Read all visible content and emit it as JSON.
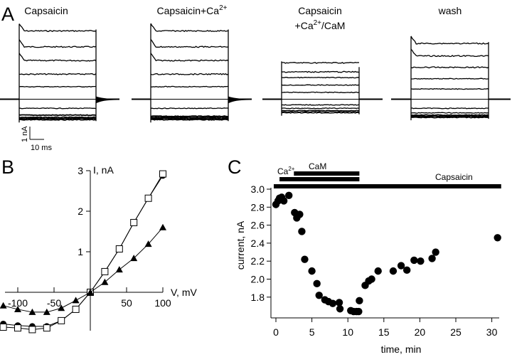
{
  "chart_data": [
    {
      "panel": "A",
      "type": "line",
      "description": "Whole-cell current traces in response to voltage steps",
      "conditions": [
        {
          "title_lines": [
            "Capsaicin"
          ],
          "title_sup": null,
          "step_currents_nA": [
            3.0,
            2.3,
            1.7,
            1.1,
            0.55,
            0,
            -0.4,
            -0.7,
            -0.8,
            -0.85,
            -0.9
          ],
          "tail": true
        },
        {
          "title_lines": [
            "Capsaicin+Ca"
          ],
          "title_sup": "2+",
          "step_currents_nA": [
            3.0,
            2.3,
            1.7,
            1.1,
            0.55,
            0,
            -0.4,
            -0.75,
            -0.8,
            -0.85,
            -0.9
          ],
          "tail": true
        },
        {
          "title_lines": [
            "Capsaicin",
            "+Ca"
          ],
          "title_sup": "2+",
          "title_suffix": "/CaM",
          "step_currents_nA": [
            1.6,
            1.2,
            0.95,
            0.62,
            0.3,
            0,
            -0.25,
            -0.4,
            -0.5,
            -0.55,
            -0.6
          ],
          "tail": false
        },
        {
          "title_lines": [
            "wash"
          ],
          "title_sup": null,
          "step_currents_nA": [
            2.45,
            1.9,
            1.4,
            0.9,
            0.45,
            0,
            -0.4,
            -0.6,
            -0.7,
            -0.75,
            -0.8
          ],
          "tail": false
        }
      ],
      "scale_bar": {
        "current_label": "1 nA",
        "time_label": "10 ms"
      }
    },
    {
      "panel": "B",
      "type": "line",
      "xlabel": "V, mV",
      "ylabel": "I, nA",
      "xlim": [
        -120,
        100
      ],
      "ylim": [
        -1,
        3
      ],
      "xticks": [
        -100,
        -50,
        50,
        100
      ],
      "xtick_labels": [
        "-100",
        "-50",
        "50",
        "100"
      ],
      "yticks": [
        1,
        2,
        3
      ],
      "ytick_labels": [
        "1",
        "2",
        "3"
      ],
      "series": [
        {
          "name": "circles",
          "marker": "filled-circle",
          "x": [
            -120,
            -100,
            -80,
            -60,
            -40,
            -20,
            0,
            20,
            40,
            60,
            80,
            100
          ],
          "y": [
            -0.78,
            -0.82,
            -0.84,
            -0.84,
            -0.7,
            -0.42,
            0,
            0.51,
            1.07,
            1.72,
            2.32,
            2.88
          ]
        },
        {
          "name": "squares",
          "marker": "open-square",
          "x": [
            -120,
            -100,
            -80,
            -60,
            -40,
            -20,
            0,
            20,
            40,
            60,
            80,
            100
          ],
          "y": [
            -0.86,
            -0.88,
            -0.92,
            -0.88,
            -0.7,
            -0.42,
            0,
            0.51,
            1.07,
            1.72,
            2.32,
            2.92
          ]
        },
        {
          "name": "triangles",
          "marker": "filled-triangle",
          "x": [
            -120,
            -100,
            -80,
            -60,
            -40,
            -20,
            0,
            20,
            40,
            60,
            80,
            100
          ],
          "y": [
            -0.33,
            -0.42,
            -0.49,
            -0.49,
            -0.39,
            -0.2,
            0,
            0.25,
            0.56,
            0.84,
            1.19,
            1.6
          ]
        }
      ]
    },
    {
      "panel": "C",
      "type": "scatter",
      "xlabel": "time, min",
      "ylabel": "current, nA",
      "xlim": [
        -1,
        31.5
      ],
      "ylim": [
        1.6,
        3.05
      ],
      "xticks": [
        0,
        5,
        10,
        15,
        20,
        25,
        30
      ],
      "xtick_labels": [
        "0",
        "5",
        "10",
        "15",
        "20",
        "25",
        "30"
      ],
      "yticks": [
        1.8,
        2.0,
        2.2,
        2.4,
        2.6,
        2.8,
        3.0
      ],
      "ytick_labels": [
        "1.8",
        "2.0",
        "2.2",
        "2.4",
        "2.6",
        "2.8",
        "3.0"
      ],
      "x": [
        0,
        0.3,
        0.5,
        0.8,
        1.1,
        1.8,
        2.6,
        2.9,
        3.3,
        3.6,
        4.0,
        5.0,
        5.7,
        6.0,
        6.8,
        7.3,
        7.9,
        8.8,
        8.9,
        10.4,
        10.8,
        11.2,
        11.5,
        11.6,
        12.4,
        12.9,
        13.3,
        14.2,
        16.3,
        17.4,
        18.2,
        19.2,
        20.1,
        21.7,
        22.2,
        30.8
      ],
      "y": [
        2.83,
        2.87,
        2.9,
        2.91,
        2.87,
        2.93,
        2.74,
        2.68,
        2.72,
        2.53,
        2.22,
        2.09,
        1.95,
        1.82,
        1.77,
        1.75,
        1.73,
        1.74,
        1.67,
        1.65,
        1.64,
        1.64,
        1.64,
        1.76,
        1.93,
        1.98,
        2.0,
        2.09,
        2.09,
        2.15,
        2.1,
        2.21,
        2.2,
        2.23,
        2.3,
        2.46
      ],
      "bars": [
        {
          "label": "CaM",
          "start": 2.5,
          "end": 11.6
        },
        {
          "label": "Ca",
          "label_sup": "2+",
          "start": 0.5,
          "end": 11.6
        },
        {
          "label": "Capsaicin",
          "start": -0.3,
          "end": 31.3
        }
      ]
    }
  ],
  "panel_labels": [
    "A",
    "B",
    "C"
  ]
}
